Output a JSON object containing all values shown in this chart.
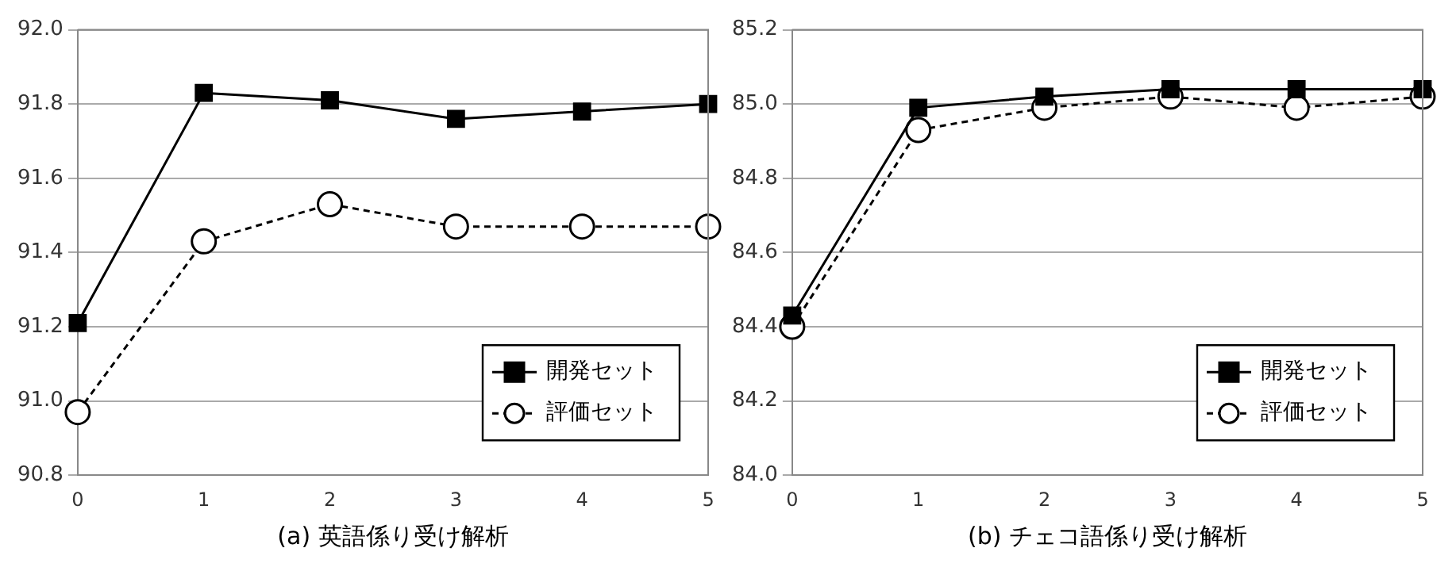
{
  "chart_data": [
    {
      "type": "line",
      "xlabel": "(a) 英語係り受け解析",
      "categories": [
        "0",
        "1",
        "2",
        "3",
        "4",
        "5"
      ],
      "series": [
        {
          "name": "開発セット",
          "color": "#000000",
          "marker": "square",
          "line_style": "solid",
          "values": [
            91.21,
            91.83,
            91.81,
            91.76,
            91.78,
            91.8
          ]
        },
        {
          "name": "評価セット",
          "color": "#000000",
          "marker": "circle",
          "line_style": "dashed",
          "values": [
            90.97,
            91.43,
            91.53,
            91.47,
            91.47,
            91.47
          ]
        }
      ],
      "ylim": [
        90.8,
        92.0
      ],
      "yticks": [
        {
          "value": 90.8,
          "label": "90.8"
        },
        {
          "value": 91.0,
          "label": "91.0"
        },
        {
          "value": 91.2,
          "label": "91.2"
        },
        {
          "value": 91.4,
          "label": "91.4"
        },
        {
          "value": 91.6,
          "label": "91.6"
        },
        {
          "value": 91.8,
          "label": "91.8"
        },
        {
          "value": 92.0,
          "label": "92.0"
        }
      ],
      "grid": "y",
      "legend": "bottom right"
    },
    {
      "type": "line",
      "xlabel": "(b) チェコ語係り受け解析",
      "categories": [
        "0",
        "1",
        "2",
        "3",
        "4",
        "5"
      ],
      "series": [
        {
          "name": "開発セット",
          "color": "#000000",
          "marker": "square",
          "line_style": "solid",
          "values": [
            84.43,
            84.99,
            85.02,
            85.04,
            85.04,
            85.04
          ]
        },
        {
          "name": "評価セット",
          "color": "#000000",
          "marker": "circle",
          "line_style": "dashed",
          "values": [
            84.4,
            84.93,
            84.99,
            85.02,
            84.99,
            85.02
          ]
        }
      ],
      "ylim": [
        84.0,
        85.2
      ],
      "yticks": [
        {
          "value": 84.0,
          "label": "84.0"
        },
        {
          "value": 84.2,
          "label": "84.2"
        },
        {
          "value": 84.4,
          "label": "84.4"
        },
        {
          "value": 84.6,
          "label": "84.6"
        },
        {
          "value": 84.8,
          "label": "84.8"
        },
        {
          "value": 85.0,
          "label": "85.0"
        },
        {
          "value": 85.2,
          "label": "85.2"
        }
      ],
      "grid": "y",
      "legend": "bottom right"
    }
  ]
}
